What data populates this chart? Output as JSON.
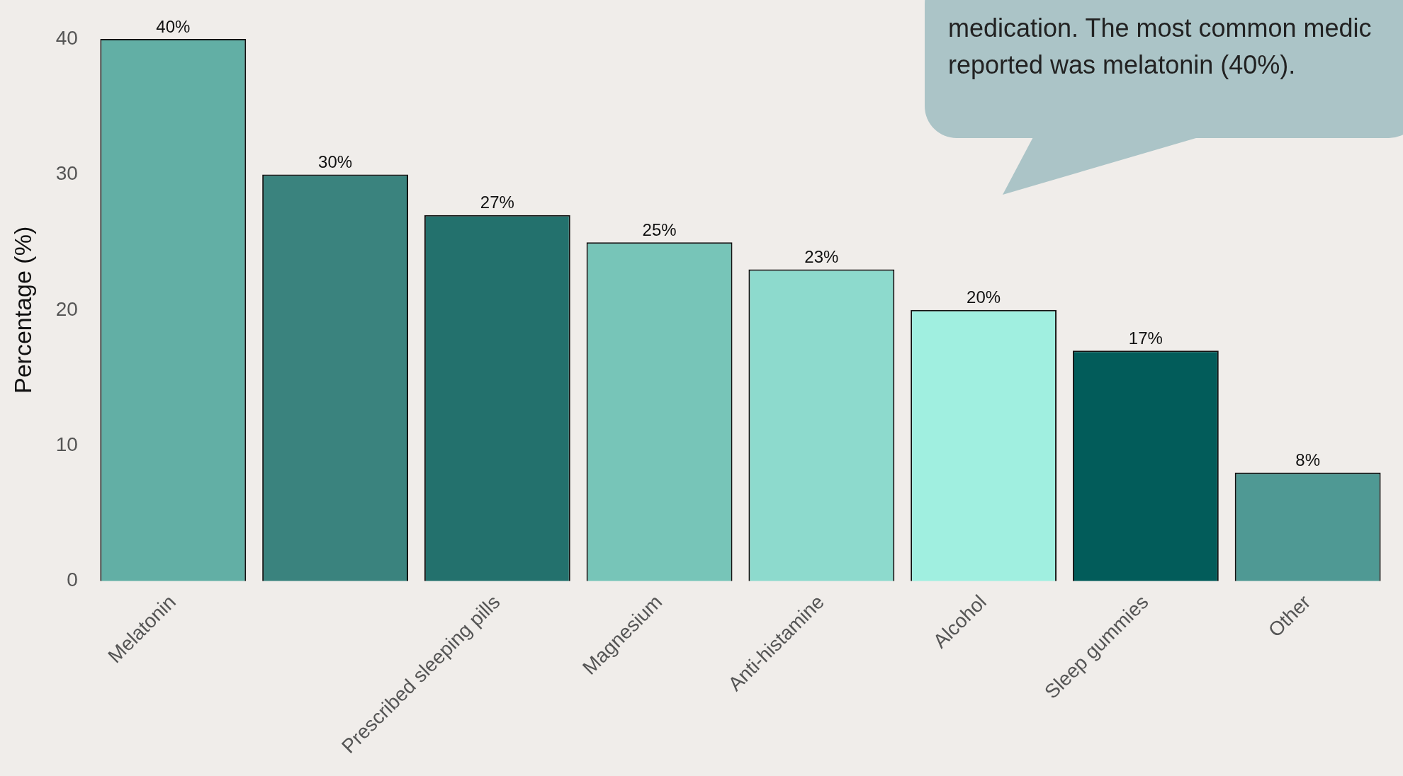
{
  "chart_data": {
    "type": "bar",
    "ylabel": "Percentage (%)",
    "categories": [
      "Melatonin",
      null,
      "Prescribed sleeping pills",
      "Magnesium",
      "Anti-histamine",
      "Alcohol",
      "Sleep gummies",
      "Other"
    ],
    "values": [
      40,
      30,
      27,
      25,
      23,
      20,
      17,
      8
    ],
    "colors": [
      "#62afa5",
      "#3a837e",
      "#23716d",
      "#77c5b8",
      "#8ddacd",
      "#a0efe0",
      "#025c5a",
      "#4f9994"
    ],
    "value_labels": [
      "40%",
      "30%",
      "27%",
      "25%",
      "23%",
      "20%",
      "17%",
      "8%"
    ],
    "ylim": [
      0,
      40
    ],
    "yticks": [
      0,
      10,
      20,
      30,
      40
    ],
    "grid": false,
    "legend": false,
    "annotations": [
      "medication. The most common medic\nreported was melatonin (40%)."
    ]
  }
}
